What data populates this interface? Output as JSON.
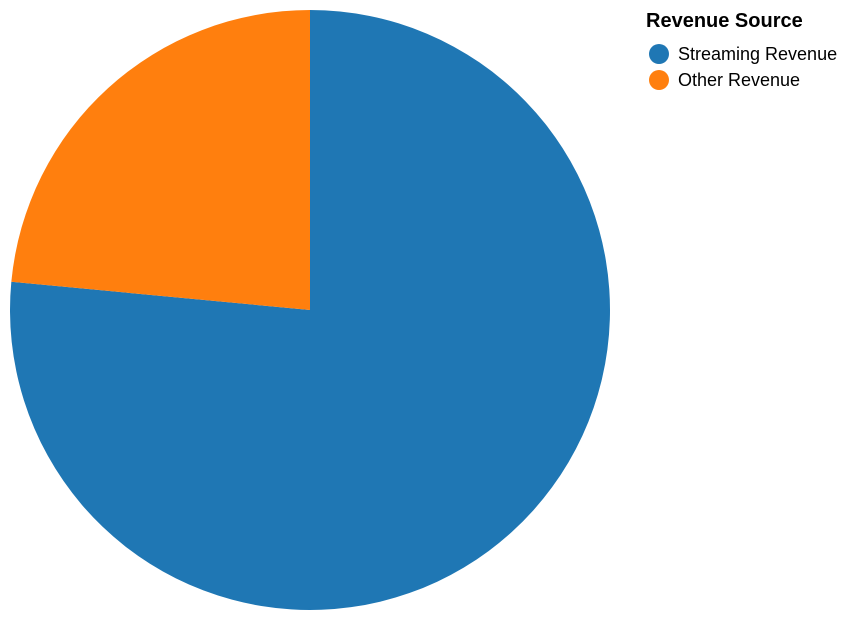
{
  "chart_data": {
    "type": "pie",
    "legend_title": "Revenue Source",
    "legend_position": "top-right",
    "categories": [
      "Streaming Revenue",
      "Other Revenue"
    ],
    "values": [
      76.5,
      23.5
    ],
    "colors": [
      "#1f77b4",
      "#ff7f0e"
    ],
    "start_angle_deg": 0,
    "direction": "clockwise-from-top"
  }
}
